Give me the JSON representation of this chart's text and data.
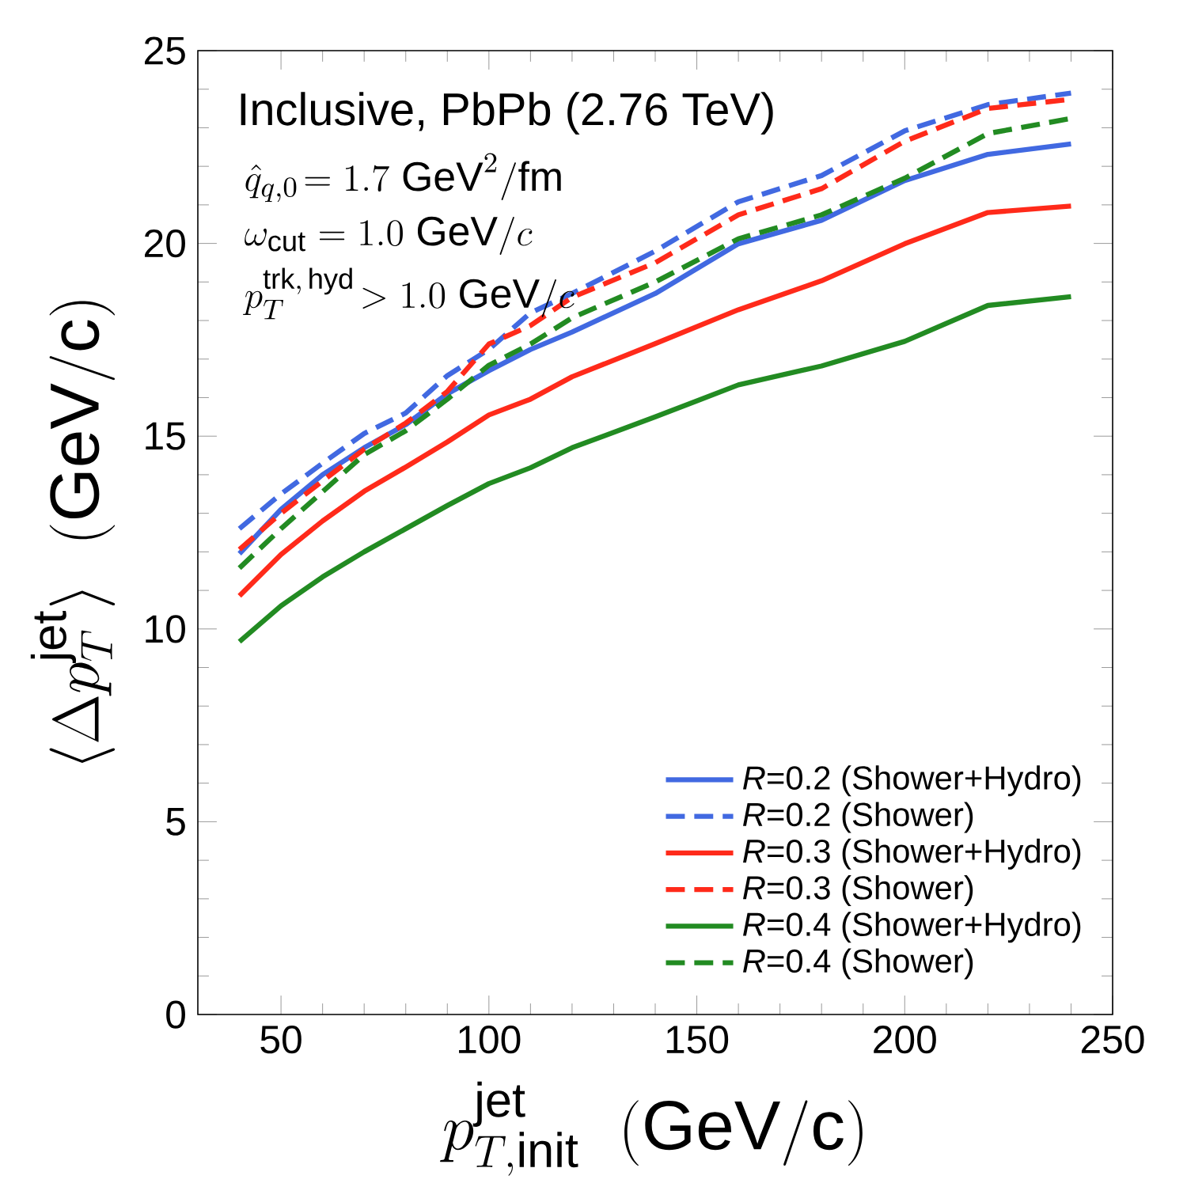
{
  "chart_data": {
    "type": "line",
    "xlabel": "p_{T,\\mathrm{init}}^{\\mathrm{jet}}\\ \\ (\\mathrm{GeV/c})",
    "ylabel": "\\langle \\Delta p_T^{\\mathrm{jet}}\\rangle\\ \\ (\\mathrm{GeV/c})",
    "annotations": [
      "Inclusive, PbPb (2.76 TeV)",
      "\\hat{q}_{q,0}\\!= 1.7\\ \\mathrm{GeV}^2/\\mathrm{fm}",
      "\\omega_{\\mathrm{cut}} = 1.0\\ \\mathrm{GeV}/c",
      "p_T^{\\mathrm{trk,\\,hyd}}\\!> 1.0\\ \\mathrm{GeV}/c"
    ],
    "x": [
      40,
      50,
      60,
      70,
      80,
      90,
      100,
      110,
      120,
      140,
      160,
      180,
      200,
      220,
      240
    ],
    "xlim": [
      30,
      250
    ],
    "xticks": [
      50,
      100,
      150,
      200,
      250
    ],
    "ylim": [
      0,
      25
    ],
    "yticks": [
      0,
      5,
      10,
      15,
      20,
      25
    ],
    "grid": false,
    "legend": "bottom right",
    "marker": "none",
    "series": [
      {
        "name": "*R*=0.2 (Shower+Hydro)",
        "color": "#4169e1",
        "line_style": "solid",
        "values": [
          11.95,
          13.1,
          14.0,
          14.7,
          15.3,
          16.1,
          16.7,
          17.25,
          17.7,
          18.7,
          19.99,
          20.6,
          21.63,
          22.31,
          22.58
        ]
      },
      {
        "name": "*R*=0.2 (Shower)",
        "color": "#4169e1",
        "line_style": "dashed",
        "values": [
          12.6,
          13.5,
          14.3,
          15.07,
          15.6,
          16.57,
          17.25,
          18.2,
          18.7,
          19.8,
          21.08,
          21.76,
          22.92,
          23.6,
          23.9
        ]
      },
      {
        "name": "*R*=0.3 (Shower+Hydro)",
        "color": "#ff2a1a",
        "line_style": "solid",
        "values": [
          10.86,
          11.93,
          12.8,
          13.57,
          14.2,
          14.85,
          15.55,
          15.96,
          16.54,
          17.4,
          18.28,
          19.03,
          19.99,
          20.8,
          20.97
        ]
      },
      {
        "name": "*R*=0.3 (Shower)",
        "color": "#ff2a1a",
        "line_style": "dashed",
        "values": [
          12.06,
          13.0,
          13.84,
          14.66,
          15.34,
          16.16,
          17.39,
          17.87,
          18.6,
          19.5,
          20.74,
          21.42,
          22.65,
          23.5,
          23.74
        ]
      },
      {
        "name": "*R*=0.4 (Shower+Hydro)",
        "color": "#228b22",
        "line_style": "solid",
        "values": [
          9.67,
          10.6,
          11.35,
          12.0,
          12.6,
          13.2,
          13.77,
          14.18,
          14.7,
          15.5,
          16.33,
          16.82,
          17.46,
          18.39,
          18.62
        ]
      },
      {
        "name": "*R*=0.4 (Shower)",
        "color": "#228b22",
        "line_style": "dashed",
        "values": [
          11.58,
          12.6,
          13.56,
          14.52,
          15.14,
          15.96,
          16.84,
          17.39,
          18.07,
          19.0,
          20.12,
          20.74,
          21.69,
          22.85,
          23.24
        ]
      }
    ]
  }
}
